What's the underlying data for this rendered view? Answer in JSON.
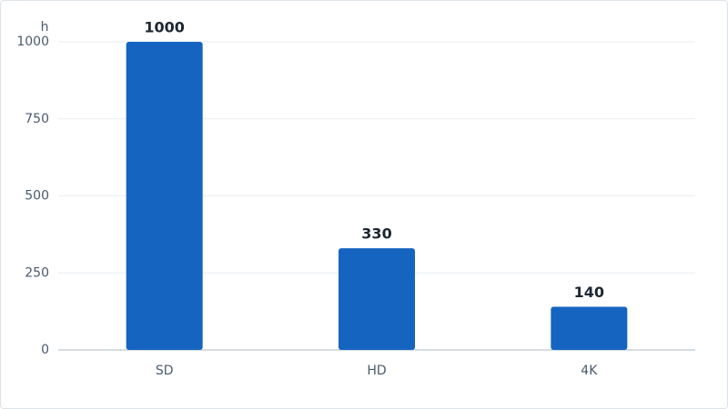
{
  "chart_data": {
    "type": "bar",
    "y_label": "h",
    "categories": [
      "SD",
      "HD",
      "4K"
    ],
    "values": [
      1000,
      330,
      140
    ],
    "color": "#1565c0",
    "ylim": [
      0,
      1000
    ],
    "yticks": [
      0,
      250,
      500,
      750,
      1000
    ],
    "grid": true
  }
}
